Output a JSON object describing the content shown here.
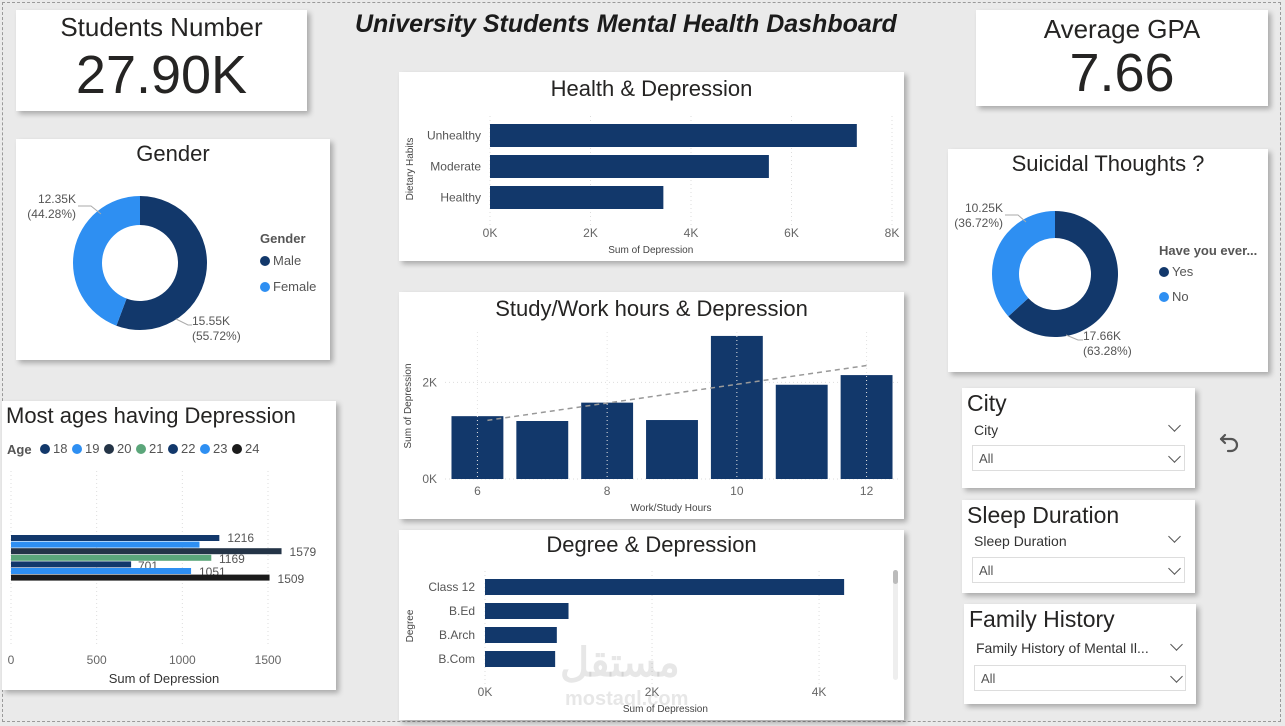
{
  "dashboard": {
    "title": "University Students Mental Health Dashboard"
  },
  "kpis": {
    "students": {
      "label": "Students Number",
      "value": "27.90K"
    },
    "gpa": {
      "label": "Average GPA",
      "value": "7.66"
    }
  },
  "colors": {
    "dark_navy": "#12386b",
    "light_blue": "#2e8ff2",
    "green": "#5ba67a",
    "black": "#1b1b1b"
  },
  "chart_data": [
    {
      "id": "gender",
      "type": "pie",
      "title": "Gender",
      "legend_title": "Gender",
      "slices": [
        {
          "name": "Male",
          "value": 15.55,
          "label": "15.55K",
          "pct": "(55.72%)",
          "color": "#12386b"
        },
        {
          "name": "Female",
          "value": 12.35,
          "label": "12.35K",
          "pct": "(44.28%)",
          "color": "#2e8ff2"
        }
      ]
    },
    {
      "id": "health",
      "type": "bar",
      "title": "Health & Depression",
      "xlabel": "Sum of Depression",
      "ylabel": "Dietary Habits",
      "categories": [
        "Unhealthy",
        "Moderate",
        "Healthy"
      ],
      "values": [
        7300,
        5550,
        3450
      ],
      "xlim": [
        0,
        8000
      ],
      "xticks": [
        "0K",
        "2K",
        "4K",
        "6K",
        "8K"
      ]
    },
    {
      "id": "hours",
      "type": "bar",
      "title": "Study/Work hours & Depression",
      "xlabel": "Work/Study Hours",
      "ylabel": "Sum of Depression",
      "categories": [
        6,
        7,
        8,
        9,
        10,
        11,
        12
      ],
      "values": [
        1300,
        1200,
        1580,
        1220,
        2960,
        1950,
        2150
      ],
      "ylim": [
        0,
        3000
      ],
      "yticks": [
        "0K",
        "2K"
      ],
      "xticks": [
        "6",
        "8",
        "10",
        "12"
      ],
      "trendline": true
    },
    {
      "id": "degree",
      "type": "bar",
      "title": "Degree & Depression",
      "xlabel": "Sum of Depression",
      "ylabel": "Degree",
      "categories": [
        "Class 12",
        "B.Ed",
        "B.Arch",
        "B.Com"
      ],
      "values": [
        4300,
        1000,
        860,
        840
      ],
      "xlim": [
        0,
        5400
      ],
      "xticks": [
        "0K",
        "2K",
        "4K"
      ]
    },
    {
      "id": "suicidal",
      "type": "pie",
      "title": "Suicidal Thoughts ?",
      "legend_title": "Have you ever...",
      "slices": [
        {
          "name": "Yes",
          "value": 17.66,
          "label": "17.66K",
          "pct": "(63.28%)",
          "color": "#12386b"
        },
        {
          "name": "No",
          "value": 10.25,
          "label": "10.25K",
          "pct": "(36.72%)",
          "color": "#2e8ff2"
        }
      ]
    },
    {
      "id": "ages",
      "type": "bar",
      "title": "Most ages having Depression",
      "xlabel": "Sum of Depression",
      "legend_title": "Age",
      "xlim": [
        0,
        1700
      ],
      "xticks": [
        "0",
        "500",
        "1000",
        "1500"
      ],
      "series": [
        {
          "name": "18",
          "value": 1216,
          "color": "#12386b",
          "label": "1216"
        },
        {
          "name": "19",
          "value": 1100,
          "color": "#2e8ff2",
          "label": ""
        },
        {
          "name": "20",
          "value": 1579,
          "color": "#243447",
          "label": "1579"
        },
        {
          "name": "21",
          "value": 1169,
          "color": "#5ba67a",
          "label": "1169"
        },
        {
          "name": "22",
          "value": 701,
          "color": "#12386b",
          "label": "701"
        },
        {
          "name": "23",
          "value": 1051,
          "color": "#2e8ff2",
          "label": "1051"
        },
        {
          "name": "24",
          "value": 1509,
          "color": "#1b1b1b",
          "label": "1509"
        }
      ]
    }
  ],
  "slicers": [
    {
      "title": "City",
      "field": "City",
      "value": "All"
    },
    {
      "title": "Sleep Duration",
      "field": "Sleep Duration",
      "value": "All"
    },
    {
      "title": "Family History",
      "field": "Family History of Mental Il...",
      "value": "All"
    }
  ],
  "watermark": {
    "arabic": "مستقل",
    "latin": "mostaql.com"
  }
}
